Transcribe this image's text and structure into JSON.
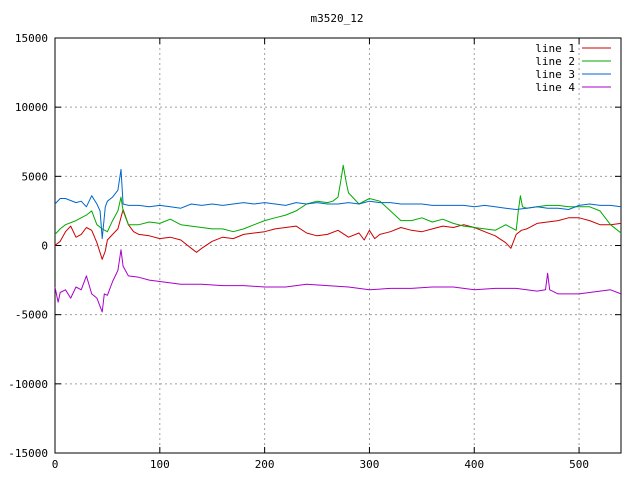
{
  "chart_data": {
    "type": "line",
    "title": "m3520_12",
    "xlabel": "",
    "ylabel": "",
    "xlim": [
      0,
      540
    ],
    "ylim": [
      -15000,
      15000
    ],
    "xticks": [
      0,
      100,
      200,
      300,
      400,
      500
    ],
    "yticks": [
      -15000,
      -10000,
      -5000,
      0,
      5000,
      10000,
      15000
    ],
    "grid": true,
    "legend_position": "top-right",
    "series": [
      {
        "name": "line 1",
        "color": "#cc0000",
        "x": [
          0,
          5,
          10,
          15,
          20,
          25,
          30,
          35,
          40,
          45,
          48,
          50,
          55,
          60,
          65,
          70,
          75,
          80,
          90,
          100,
          110,
          120,
          130,
          135,
          140,
          150,
          160,
          170,
          180,
          190,
          200,
          210,
          220,
          230,
          240,
          250,
          260,
          270,
          280,
          290,
          295,
          300,
          305,
          310,
          320,
          330,
          340,
          350,
          360,
          370,
          380,
          390,
          400,
          410,
          420,
          430,
          435,
          440,
          445,
          450,
          460,
          470,
          480,
          490,
          500,
          510,
          520,
          530,
          540
        ],
        "y": [
          0,
          300,
          1000,
          1400,
          600,
          800,
          1300,
          1100,
          200,
          -1000,
          -400,
          400,
          800,
          1200,
          2600,
          1500,
          1000,
          800,
          700,
          500,
          600,
          400,
          -200,
          -500,
          -200,
          300,
          600,
          500,
          800,
          900,
          1000,
          1200,
          1300,
          1400,
          900,
          700,
          800,
          1100,
          600,
          900,
          400,
          1100,
          500,
          800,
          1000,
          1300,
          1100,
          1000,
          1200,
          1400,
          1300,
          1500,
          1300,
          1000,
          700,
          200,
          -200,
          800,
          1100,
          1200,
          1600,
          1700,
          1800,
          2000,
          2000,
          1800,
          1500,
          1500,
          1600
        ]
      },
      {
        "name": "line 2",
        "color": "#00aa00",
        "x": [
          0,
          5,
          10,
          20,
          30,
          35,
          40,
          45,
          50,
          55,
          60,
          63,
          65,
          70,
          80,
          90,
          100,
          110,
          120,
          130,
          140,
          150,
          160,
          170,
          180,
          190,
          200,
          210,
          220,
          230,
          240,
          250,
          260,
          265,
          270,
          273,
          275,
          278,
          280,
          290,
          300,
          310,
          320,
          330,
          340,
          350,
          360,
          370,
          380,
          390,
          400,
          410,
          420,
          430,
          440,
          442,
          444,
          446,
          450,
          460,
          470,
          480,
          490,
          500,
          510,
          520,
          530,
          540
        ],
        "y": [
          800,
          1200,
          1500,
          1800,
          2200,
          2500,
          1500,
          1200,
          1000,
          1800,
          2500,
          3500,
          2500,
          1500,
          1500,
          1700,
          1600,
          1900,
          1500,
          1400,
          1300,
          1200,
          1200,
          1000,
          1200,
          1500,
          1800,
          2000,
          2200,
          2500,
          3000,
          3200,
          3100,
          3200,
          3500,
          4800,
          5800,
          4500,
          3800,
          3000,
          3400,
          3200,
          2500,
          1800,
          1800,
          2000,
          1700,
          1900,
          1600,
          1400,
          1300,
          1200,
          1100,
          1500,
          1100,
          2500,
          3600,
          2800,
          2700,
          2800,
          2900,
          2900,
          2800,
          2800,
          2800,
          2500,
          1500,
          900
        ]
      },
      {
        "name": "line 3",
        "color": "#0066cc",
        "x": [
          0,
          5,
          10,
          20,
          25,
          30,
          35,
          40,
          43,
          45,
          48,
          50,
          55,
          60,
          63,
          65,
          70,
          80,
          90,
          100,
          110,
          120,
          130,
          140,
          150,
          160,
          170,
          180,
          190,
          200,
          210,
          220,
          230,
          240,
          250,
          260,
          270,
          280,
          290,
          300,
          310,
          320,
          330,
          340,
          350,
          360,
          370,
          380,
          390,
          400,
          410,
          420,
          430,
          440,
          450,
          460,
          470,
          480,
          490,
          500,
          510,
          520,
          530,
          540
        ],
        "y": [
          3000,
          3400,
          3400,
          3100,
          3200,
          2800,
          3600,
          3000,
          2500,
          500,
          2800,
          3200,
          3500,
          4000,
          5500,
          3000,
          2900,
          2900,
          2800,
          2900,
          2800,
          2700,
          3000,
          2900,
          3000,
          2900,
          3000,
          3100,
          3000,
          3100,
          3000,
          2900,
          3100,
          3000,
          3100,
          3000,
          3000,
          3100,
          3000,
          3200,
          3100,
          3100,
          3000,
          3000,
          3000,
          2900,
          2900,
          2900,
          2900,
          2800,
          2900,
          2800,
          2700,
          2600,
          2700,
          2800,
          2700,
          2700,
          2600,
          2900,
          3000,
          2900,
          2900,
          2800
        ]
      },
      {
        "name": "line 4",
        "color": "#aa00cc",
        "x": [
          0,
          3,
          5,
          10,
          15,
          20,
          25,
          30,
          35,
          40,
          45,
          47,
          50,
          55,
          60,
          63,
          65,
          70,
          80,
          90,
          100,
          120,
          140,
          160,
          180,
          200,
          220,
          240,
          260,
          280,
          300,
          320,
          340,
          360,
          380,
          400,
          420,
          440,
          460,
          468,
          470,
          472,
          480,
          500,
          520,
          530,
          540
        ],
        "y": [
          -3000,
          -4100,
          -3400,
          -3200,
          -3800,
          -3000,
          -3200,
          -2200,
          -3500,
          -3800,
          -4800,
          -3500,
          -3600,
          -2600,
          -1800,
          -300,
          -1500,
          -2200,
          -2300,
          -2500,
          -2600,
          -2800,
          -2800,
          -2900,
          -2900,
          -3000,
          -3000,
          -2800,
          -2900,
          -3000,
          -3200,
          -3100,
          -3100,
          -3000,
          -3000,
          -3200,
          -3100,
          -3100,
          -3300,
          -3200,
          -2000,
          -3200,
          -3500,
          -3500,
          -3300,
          -3200,
          -3500
        ]
      }
    ]
  }
}
